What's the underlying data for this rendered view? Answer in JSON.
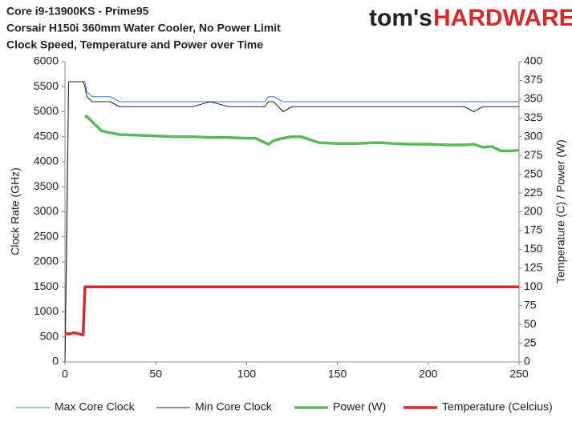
{
  "chart_data": {
    "type": "line",
    "title": [
      "Core i9-13900KS - Prime95",
      "Corsair H150i 360mm Water Cooler, No Power Limit",
      "Clock Speed, Temperature and Power over Time"
    ],
    "logo": {
      "left": "tom's",
      "right": "HARDWARE"
    },
    "y_label": "Clock Rate (GHz)",
    "y2_label": "Temperature (C) / Power (W)",
    "x": [
      0,
      1,
      2,
      5,
      10,
      11,
      12,
      15,
      20,
      25,
      30,
      40,
      50,
      60,
      70,
      80,
      90,
      100,
      105,
      110,
      112,
      115,
      120,
      125,
      130,
      135,
      140,
      150,
      160,
      170,
      175,
      180,
      190,
      200,
      210,
      220,
      225,
      230,
      235,
      240,
      245,
      250
    ],
    "xlim": [
      0,
      250
    ],
    "xticks": [
      0,
      50,
      100,
      150,
      200,
      250
    ],
    "ylim": [
      0,
      6000
    ],
    "yticks": [
      0,
      500,
      1000,
      1500,
      2000,
      2500,
      3000,
      3500,
      4000,
      4500,
      5000,
      5500,
      6000
    ],
    "y2lim": [
      0,
      400
    ],
    "y2ticks": [
      0,
      25,
      50,
      75,
      100,
      125,
      150,
      175,
      200,
      225,
      250,
      275,
      300,
      325,
      350,
      375,
      400
    ],
    "grid": false,
    "legend": "bottom",
    "series": [
      {
        "name": "Max Core Clock",
        "color": "#3a7fc1",
        "width": 1,
        "values": [
          0,
          3000,
          5600,
          5600,
          5600,
          5600,
          5400,
          5300,
          5300,
          5300,
          5200,
          5200,
          5200,
          5200,
          5200,
          5200,
          5200,
          5200,
          5200,
          5200,
          5300,
          5300,
          5200,
          5200,
          5200,
          5200,
          5200,
          5200,
          5200,
          5200,
          5200,
          5200,
          5200,
          5200,
          5200,
          5200,
          5200,
          5200,
          5200,
          5200,
          5200,
          5200
        ]
      },
      {
        "name": "Min Core Clock",
        "color": "#222222",
        "width": 1,
        "values": [
          0,
          2500,
          5600,
          5600,
          5600,
          5500,
          5300,
          5200,
          5200,
          5200,
          5100,
          5100,
          5100,
          5100,
          5100,
          5200,
          5100,
          5100,
          5100,
          5100,
          5200,
          5200,
          5000,
          5100,
          5100,
          5100,
          5100,
          5100,
          5100,
          5100,
          5100,
          5100,
          5100,
          5100,
          5100,
          5100,
          5000,
          5100,
          5100,
          5100,
          5100,
          5100
        ]
      },
      {
        "name": "Power (W)",
        "color": "#5cb85c",
        "width": 3.5,
        "axis": "y2",
        "values": [
          null,
          null,
          null,
          null,
          null,
          327,
          327,
          320,
          308,
          305,
          303,
          302,
          301,
          300,
          300,
          299,
          299,
          298,
          298,
          292,
          290,
          295,
          298,
          300,
          300,
          296,
          292,
          291,
          291,
          292,
          292,
          291,
          290,
          290,
          289,
          289,
          290,
          286,
          287,
          281,
          281,
          282
        ]
      },
      {
        "name": "Temperature (Celcius)",
        "color": "#d42a2a",
        "width": 3.5,
        "axis": "y2",
        "values": [
          37,
          38,
          37,
          39,
          36,
          100,
          100,
          100,
          100,
          100,
          100,
          100,
          100,
          100,
          100,
          100,
          100,
          100,
          100,
          100,
          100,
          100,
          100,
          100,
          100,
          100,
          100,
          100,
          100,
          100,
          100,
          100,
          100,
          100,
          100,
          100,
          100,
          100,
          100,
          100,
          100,
          100
        ]
      }
    ]
  }
}
